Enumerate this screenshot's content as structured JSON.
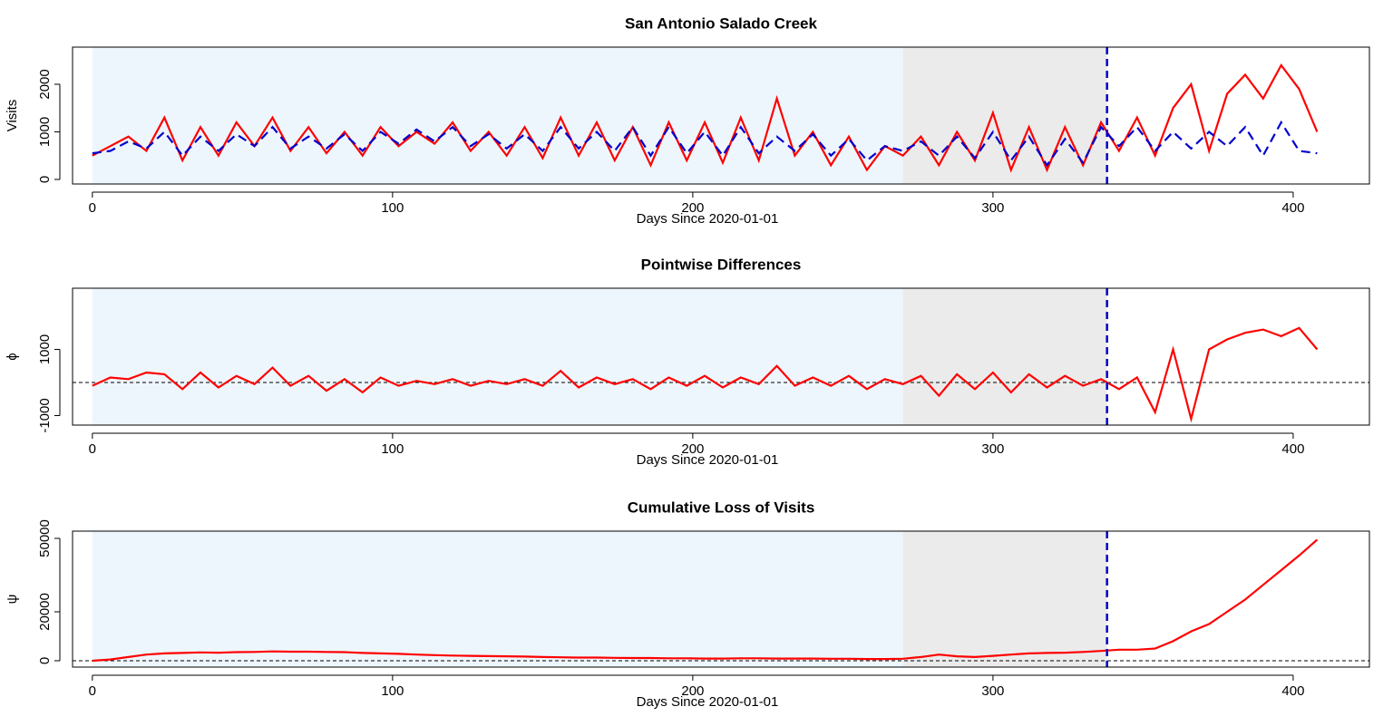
{
  "chart_data": [
    {
      "type": "line",
      "title": "San Antonio Salado Creek",
      "x_label": "Days Since 2020-01-01",
      "y_label": "Visits",
      "x": [
        0,
        6,
        12,
        18,
        24,
        30,
        36,
        42,
        48,
        54,
        60,
        66,
        72,
        78,
        84,
        90,
        96,
        102,
        108,
        114,
        120,
        126,
        132,
        138,
        144,
        150,
        156,
        162,
        168,
        174,
        180,
        186,
        192,
        198,
        204,
        210,
        216,
        222,
        228,
        234,
        240,
        246,
        252,
        258,
        264,
        270,
        276,
        282,
        288,
        294,
        300,
        306,
        312,
        318,
        324,
        330,
        336,
        342,
        348,
        354,
        360,
        366,
        372,
        378,
        384,
        390,
        396,
        402,
        408
      ],
      "series": [
        {
          "color": "#ff0000",
          "dash": false,
          "values": [
            500,
            700,
            900,
            600,
            1300,
            400,
            1100,
            500,
            1200,
            700,
            1300,
            600,
            1100,
            550,
            1000,
            500,
            1100,
            700,
            1000,
            750,
            1200,
            600,
            1000,
            500,
            1100,
            450,
            1300,
            500,
            1200,
            400,
            1100,
            300,
            1200,
            400,
            1200,
            350,
            1300,
            400,
            1700,
            500,
            1000,
            300,
            900,
            200,
            700,
            500,
            900,
            300,
            1000,
            400,
            1400,
            200,
            1100,
            200,
            1100,
            300,
            1200,
            600,
            1300,
            500,
            1500,
            2000,
            600,
            1800,
            2200,
            1700,
            2400,
            1900,
            1000
          ]
        },
        {
          "color": "#0000cc",
          "dash": true,
          "values": [
            550,
            600,
            800,
            650,
            1000,
            500,
            900,
            600,
            950,
            700,
            1100,
            650,
            900,
            650,
            950,
            600,
            1000,
            750,
            1050,
            800,
            1100,
            700,
            950,
            650,
            950,
            600,
            1100,
            650,
            1000,
            600,
            1100,
            500,
            1100,
            550,
            1000,
            500,
            1100,
            550,
            900,
            600,
            950,
            500,
            850,
            400,
            700,
            600,
            800,
            500,
            900,
            450,
            1000,
            400,
            900,
            300,
            850,
            350,
            1100,
            700,
            1100,
            600,
            1000,
            650,
            1000,
            700,
            1100,
            500,
            1200,
            600,
            550
          ]
        }
      ],
      "xlim": [
        -6.6,
        425.4
      ],
      "ylim": [
        -95,
        2780
      ],
      "xticks": [
        0,
        100,
        200,
        300,
        400
      ],
      "yticks": [
        0,
        1000,
        2000
      ],
      "shaded_regions": [
        {
          "start": 0,
          "end": 270,
          "color": "#eef6fd"
        },
        {
          "start": 270,
          "end": 338,
          "color": "#ebebeb"
        }
      ],
      "vline": {
        "value": 338,
        "color": "#0000cc"
      }
    },
    {
      "type": "line",
      "title": "Pointwise Differences",
      "x_label": "Days Since 2020-01-01",
      "y_label": "ϕ",
      "x": [
        0,
        6,
        12,
        18,
        24,
        30,
        36,
        42,
        48,
        54,
        60,
        66,
        72,
        78,
        84,
        90,
        96,
        102,
        108,
        114,
        120,
        126,
        132,
        138,
        144,
        150,
        156,
        162,
        168,
        174,
        180,
        186,
        192,
        198,
        204,
        210,
        216,
        222,
        228,
        234,
        240,
        246,
        252,
        258,
        264,
        270,
        276,
        282,
        288,
        294,
        300,
        306,
        312,
        318,
        324,
        330,
        336,
        342,
        348,
        354,
        360,
        366,
        372,
        378,
        384,
        390,
        396,
        402,
        408
      ],
      "series": [
        {
          "color": "#ff0000",
          "dash": false,
          "values": [
            -100,
            150,
            100,
            300,
            250,
            -200,
            300,
            -150,
            200,
            -50,
            450,
            -100,
            200,
            -250,
            100,
            -300,
            150,
            -100,
            50,
            -50,
            100,
            -100,
            50,
            -50,
            100,
            -100,
            350,
            -150,
            150,
            -50,
            100,
            -200,
            150,
            -100,
            200,
            -150,
            150,
            -50,
            500,
            -100,
            150,
            -100,
            200,
            -200,
            100,
            -50,
            200,
            -400,
            250,
            -200,
            300,
            -300,
            250,
            -150,
            200,
            -100,
            100,
            -200,
            150,
            -900,
            1000,
            -1100,
            1000,
            1300,
            1500,
            1600,
            1400,
            1650,
            1000
          ]
        }
      ],
      "xlim": [
        -6.6,
        425.4
      ],
      "ylim": [
        -1288,
        2849
      ],
      "xticks": [
        0,
        100,
        200,
        300,
        400
      ],
      "yticks": [
        -1000,
        1000
      ],
      "shaded_regions": [
        {
          "start": 0,
          "end": 270,
          "color": "#eef6fd"
        },
        {
          "start": 270,
          "end": 338,
          "color": "#ebebeb"
        }
      ],
      "vline": {
        "value": 338,
        "color": "#0000cc"
      },
      "hline": 0
    },
    {
      "type": "line",
      "title": "Cumulative Loss of Visits",
      "x_label": "Days Since 2020-01-01",
      "y_label": "ψ",
      "x": [
        0,
        6,
        12,
        18,
        24,
        30,
        36,
        42,
        48,
        54,
        60,
        66,
        72,
        78,
        84,
        90,
        96,
        102,
        108,
        114,
        120,
        126,
        132,
        138,
        144,
        150,
        156,
        162,
        168,
        174,
        180,
        186,
        192,
        198,
        204,
        210,
        216,
        222,
        228,
        234,
        240,
        246,
        252,
        258,
        264,
        270,
        276,
        282,
        288,
        294,
        300,
        306,
        312,
        318,
        324,
        330,
        336,
        342,
        348,
        354,
        360,
        366,
        372,
        378,
        384,
        390,
        396,
        402,
        408
      ],
      "series": [
        {
          "color": "#ff0000",
          "dash": false,
          "values": [
            0,
            500,
            1500,
            2500,
            3000,
            3200,
            3400,
            3300,
            3500,
            3600,
            3800,
            3700,
            3700,
            3600,
            3500,
            3200,
            3000,
            2800,
            2500,
            2300,
            2100,
            2000,
            1900,
            1800,
            1700,
            1500,
            1400,
            1300,
            1300,
            1200,
            1100,
            1100,
            1000,
            1000,
            900,
            900,
            1000,
            1000,
            900,
            900,
            900,
            800,
            800,
            700,
            700,
            800,
            1500,
            2500,
            1800,
            1500,
            2000,
            2500,
            3000,
            3200,
            3300,
            3600,
            4000,
            4500,
            4500,
            5000,
            8000,
            12000,
            15000,
            20000,
            25000,
            31000,
            37000,
            43000,
            49500
          ]
        }
      ],
      "xlim": [
        -6.6,
        425.4
      ],
      "ylim": [
        -2593,
        52963
      ],
      "xticks": [
        0,
        100,
        200,
        300,
        400
      ],
      "yticks": [
        0,
        20000,
        50000
      ],
      "shaded_regions": [
        {
          "start": 0,
          "end": 270,
          "color": "#eef6fd"
        },
        {
          "start": 270,
          "end": 338,
          "color": "#ebebeb"
        }
      ],
      "vline": {
        "value": 338,
        "color": "#0000cc"
      },
      "hline": 0
    }
  ]
}
